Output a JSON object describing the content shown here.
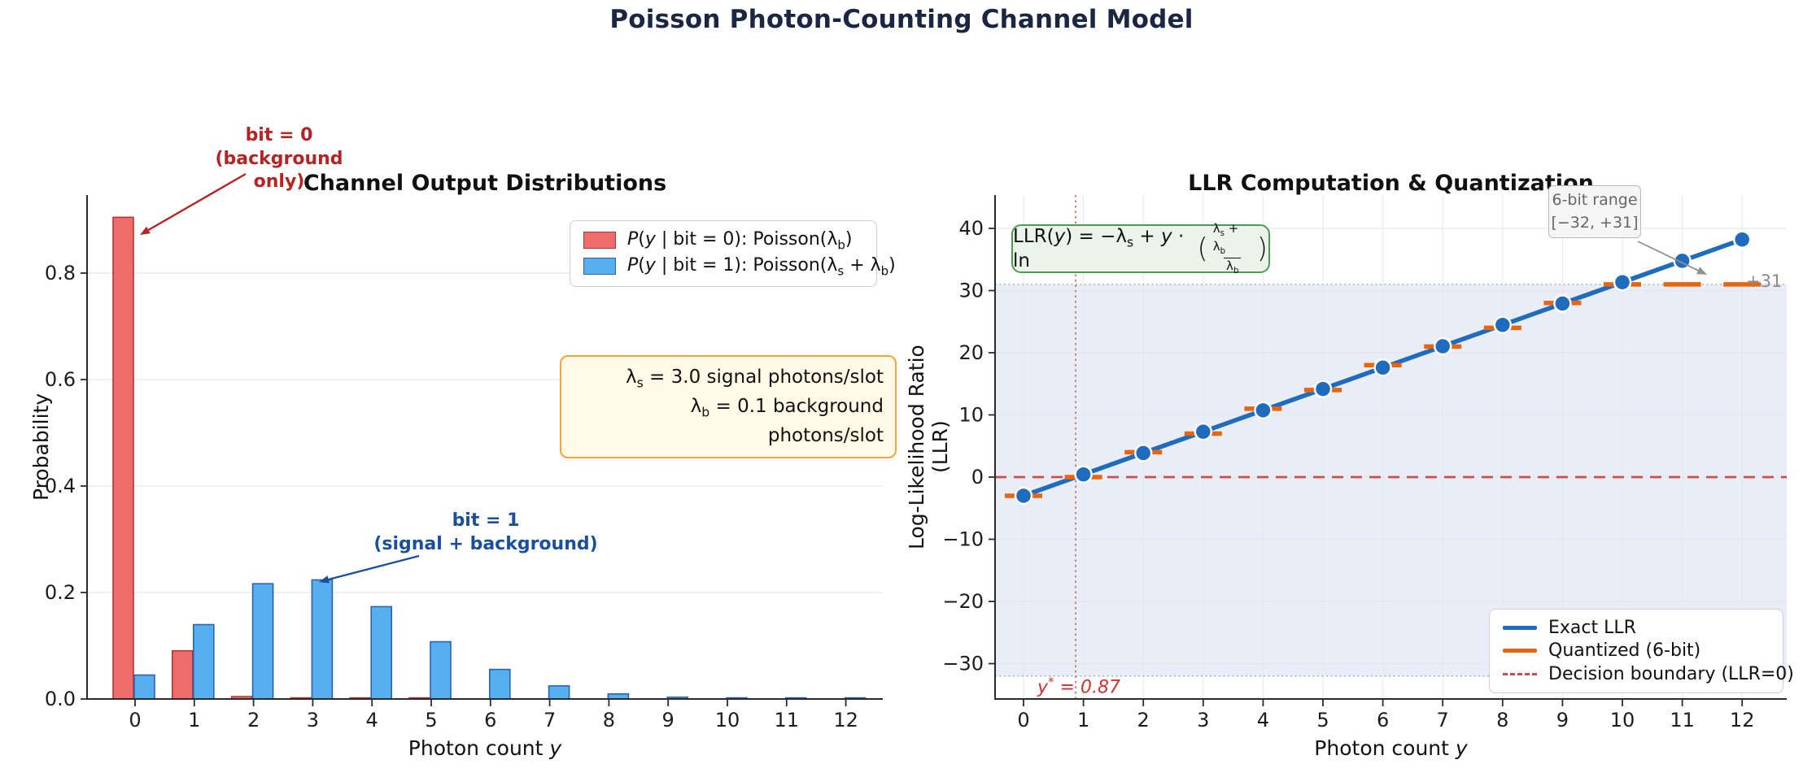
{
  "figure": {
    "title": "Poisson Photon-Counting Channel Model",
    "title_color": "#1b2742",
    "background": "#ffffff"
  },
  "chart_data": [
    {
      "type": "bar",
      "title": "Channel Output Distributions",
      "xlabel": "Photon count *{y}",
      "ylabel": "Probability",
      "categories": [
        0,
        1,
        2,
        3,
        4,
        5,
        6,
        7,
        8,
        9,
        10,
        11,
        12
      ],
      "xtick_labels": [
        "0",
        "1",
        "2",
        "3",
        "4",
        "5",
        "6",
        "7",
        "8",
        "9",
        "10",
        "11",
        "12"
      ],
      "ytick_values": [
        0.0,
        0.2,
        0.4,
        0.6,
        0.8
      ],
      "ytick_labels": [
        "0.0",
        "0.2",
        "0.4",
        "0.6",
        "0.8"
      ],
      "ylim": [
        0,
        0.95
      ],
      "grid": "horizontal",
      "legend_position": "upper right",
      "series": [
        {
          "name": "*{P}(*{y} | bit = 0): Poisson(λ_{b})",
          "color": "#ef6c6c",
          "edge_color": "#b53632",
          "values": [
            0.9048,
            0.0905,
            0.0045,
            0.00015,
            4e-06,
            1e-07,
            0,
            0,
            0,
            0,
            0,
            0,
            0
          ]
        },
        {
          "name": "*{P}(*{y} | bit = 1): Poisson(λ_{s} + λ_{b})",
          "color": "#58aff0",
          "edge_color": "#2b63b0",
          "values": [
            0.045,
            0.1397,
            0.2165,
            0.2237,
            0.1734,
            0.1075,
            0.0555,
            0.0246,
            0.0095,
            0.0033,
            0.001,
            0.0003,
            0.0001
          ]
        }
      ],
      "annotations": {
        "bit0": {
          "line1": "bit = 0",
          "line2": "(background only)",
          "color": "#b52424"
        },
        "bit1": {
          "line1": "bit = 1",
          "line2": "(signal + background)",
          "color": "#1a4f9c"
        },
        "params": {
          "line1": "λ_{s} = 3.0 signal photons/slot",
          "line2": "λ_{b} = 0.1 background photons/slot",
          "bg": "#fffbe6",
          "border": "#f2a33c"
        }
      }
    },
    {
      "type": "line",
      "title": "LLR Computation & Quantization",
      "xlabel": "Photon count *{y}",
      "ylabel": "Log-Likelihood Ratio (LLR)",
      "x": [
        0,
        1,
        2,
        3,
        4,
        5,
        6,
        7,
        8,
        9,
        10,
        11,
        12
      ],
      "xtick_labels": [
        "0",
        "1",
        "2",
        "3",
        "4",
        "5",
        "6",
        "7",
        "8",
        "9",
        "10",
        "11",
        "12"
      ],
      "ytick_values": [
        40,
        30,
        20,
        10,
        0,
        -10,
        -20,
        -30
      ],
      "ytick_labels": [
        "40",
        "30",
        "20",
        "10",
        "0",
        "−10",
        "−20",
        "−30"
      ],
      "ylim": [
        -36,
        45
      ],
      "grid": "both",
      "legend_position": "lower right",
      "series": [
        {
          "name": "Exact LLR",
          "style": "line+markers",
          "color": "#1f6cbf",
          "values": [
            -3.0,
            0.43,
            3.87,
            7.3,
            10.74,
            14.17,
            17.61,
            21.04,
            24.47,
            27.91,
            31.34,
            34.78,
            38.21
          ]
        },
        {
          "name": "Quantized (6-bit)",
          "style": "step-dashes",
          "color": "#e8650e",
          "values": [
            -3,
            0,
            4,
            7,
            11,
            14,
            18,
            21,
            24,
            28,
            31,
            31,
            31
          ]
        },
        {
          "name": "Decision boundary (LLR=0)",
          "style": "hline-dashed",
          "color": "#c94f4f",
          "value": 0
        }
      ],
      "quant_band": {
        "low": -32,
        "high": 31,
        "fill": "#e9edf7",
        "edge": "#98a4c0",
        "label_line1": "6-bit range",
        "label_line2": "[−32, +31]",
        "clip_label": "+31"
      },
      "threshold": {
        "x": 0.87,
        "label": "*{y}^{*} = 0.87",
        "color": "#cc3333"
      },
      "formula": {
        "prefix": "LLR(*{y}) = −λ_{s} + *{y} · ln",
        "open_paren": "(",
        "numerator": "λ_{s} + λ_{b}",
        "denominator": "λ_{b}",
        "close_paren": ")",
        "bg": "#eaf4ea",
        "border": "#4d9b50"
      }
    }
  ]
}
